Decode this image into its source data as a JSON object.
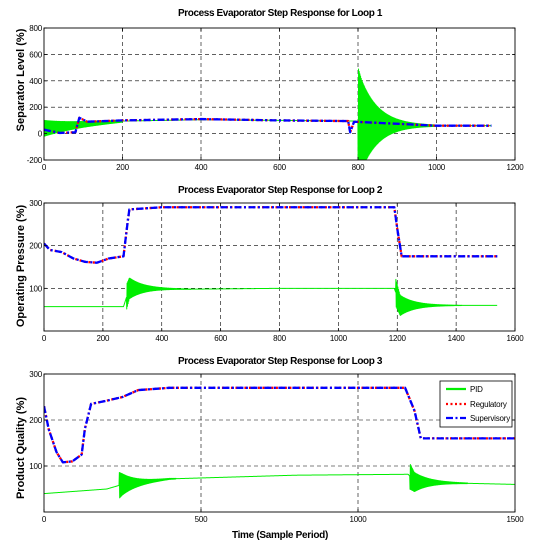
{
  "chart_data": [
    {
      "type": "line",
      "title": "Process Evaporator Step Response for Loop 1",
      "xlabel": "",
      "ylabel": "Separator Level (%)",
      "xlim": [
        0,
        1200
      ],
      "ylim": [
        -200,
        800
      ],
      "xticks": [
        0,
        200,
        400,
        600,
        800,
        1000,
        1200
      ],
      "yticks": [
        -200,
        0,
        200,
        400,
        600,
        800
      ],
      "grid": true,
      "series": [
        {
          "name": "PID",
          "color": "#00ee00",
          "style": "solid",
          "oscillations": [
            {
              "start": 0,
              "end": 200,
              "amplitude": 60,
              "decay": 0.01
            },
            {
              "start": 800,
              "end": 1000,
              "amplitude": 420,
              "decay": 0.022
            }
          ],
          "points": [
            [
              0,
              40
            ],
            [
              100,
              70
            ],
            [
              200,
              95
            ],
            [
              400,
              105
            ],
            [
              600,
              100
            ],
            [
              795,
              95
            ],
            [
              810,
              65
            ],
            [
              1000,
              60
            ],
            [
              1140,
              60
            ]
          ]
        },
        {
          "name": "Regulatory",
          "color": "#ff0000",
          "style": "dotted",
          "points": [
            [
              0,
              30
            ],
            [
              40,
              5
            ],
            [
              80,
              10
            ],
            [
              90,
              120
            ],
            [
              110,
              90
            ],
            [
              200,
              100
            ],
            [
              400,
              110
            ],
            [
              600,
              100
            ],
            [
              775,
              95
            ],
            [
              780,
              10
            ],
            [
              790,
              90
            ],
            [
              1000,
              60
            ],
            [
              1140,
              60
            ]
          ]
        },
        {
          "name": "Supervisory",
          "color": "#0000ff",
          "style": "dashdot",
          "points": [
            [
              0,
              30
            ],
            [
              40,
              5
            ],
            [
              80,
              10
            ],
            [
              90,
              120
            ],
            [
              110,
              90
            ],
            [
              200,
              100
            ],
            [
              400,
              110
            ],
            [
              600,
              100
            ],
            [
              775,
              95
            ],
            [
              780,
              10
            ],
            [
              790,
              90
            ],
            [
              1000,
              60
            ],
            [
              1140,
              60
            ]
          ]
        }
      ]
    },
    {
      "type": "line",
      "title": "Process Evaporator Step Response for Loop 2",
      "xlabel": "",
      "ylabel": "Operating Pressure (%)",
      "xlim": [
        0,
        1600
      ],
      "ylim": [
        0,
        300
      ],
      "xticks": [
        0,
        200,
        400,
        600,
        800,
        1000,
        1200,
        1400,
        1600
      ],
      "yticks": [
        100,
        200,
        300
      ],
      "grid": true,
      "series": [
        {
          "name": "PID",
          "color": "#00ee00",
          "style": "solid",
          "oscillations": [
            {
              "start": 280,
              "end": 500,
              "amplitude": 30,
              "decay": 0.02
            },
            {
              "start": 1195,
              "end": 1420,
              "amplitude": 32,
              "decay": 0.02
            }
          ],
          "points": [
            [
              0,
              57
            ],
            [
              270,
              57
            ],
            [
              290,
              100
            ],
            [
              500,
              98
            ],
            [
              800,
              100
            ],
            [
              1190,
              100
            ],
            [
              1210,
              60
            ],
            [
              1400,
              60
            ],
            [
              1540,
              60
            ]
          ]
        },
        {
          "name": "Regulatory",
          "color": "#ff0000",
          "style": "dotted",
          "points": [
            [
              0,
              205
            ],
            [
              20,
              190
            ],
            [
              60,
              185
            ],
            [
              100,
              170
            ],
            [
              140,
              162
            ],
            [
              180,
              160
            ],
            [
              220,
              170
            ],
            [
              270,
              175
            ],
            [
              285,
              260
            ],
            [
              290,
              285
            ],
            [
              400,
              290
            ],
            [
              800,
              290
            ],
            [
              1190,
              290
            ],
            [
              1200,
              240
            ],
            [
              1215,
              175
            ],
            [
              1400,
              175
            ],
            [
              1540,
              175
            ]
          ]
        },
        {
          "name": "Supervisory",
          "color": "#0000ff",
          "style": "dashdot",
          "points": [
            [
              0,
              205
            ],
            [
              20,
              190
            ],
            [
              60,
              185
            ],
            [
              100,
              170
            ],
            [
              140,
              162
            ],
            [
              180,
              160
            ],
            [
              220,
              170
            ],
            [
              270,
              175
            ],
            [
              285,
              260
            ],
            [
              290,
              285
            ],
            [
              400,
              290
            ],
            [
              800,
              290
            ],
            [
              1190,
              290
            ],
            [
              1200,
              240
            ],
            [
              1215,
              175
            ],
            [
              1400,
              175
            ],
            [
              1540,
              175
            ]
          ]
        }
      ]
    },
    {
      "type": "line",
      "title": "Process Evaporator Step Response for Loop 3",
      "xlabel": "Time (Sample Period)",
      "ylabel": "Product Quality (%)",
      "xlim": [
        0,
        1500
      ],
      "ylim": [
        0,
        300
      ],
      "xticks": [
        0,
        500,
        1000,
        1500
      ],
      "yticks": [
        100,
        200,
        300
      ],
      "grid": true,
      "legend": {
        "position": "right",
        "entries": [
          "PID",
          "Regulatory",
          "Supervisory"
        ]
      },
      "series": [
        {
          "name": "PID",
          "color": "#00ee00",
          "style": "solid",
          "oscillations": [
            {
              "start": 240,
              "end": 420,
              "amplitude": 28,
              "decay": 0.02
            },
            {
              "start": 1165,
              "end": 1350,
              "amplitude": 28,
              "decay": 0.02
            }
          ],
          "points": [
            [
              0,
              40
            ],
            [
              200,
              50
            ],
            [
              250,
              60
            ],
            [
              400,
              72
            ],
            [
              800,
              80
            ],
            [
              1160,
              82
            ],
            [
              1180,
              65
            ],
            [
              1500,
              60
            ]
          ]
        },
        {
          "name": "Regulatory",
          "color": "#ff0000",
          "style": "dotted",
          "points": [
            [
              0,
              230
            ],
            [
              15,
              180
            ],
            [
              40,
              130
            ],
            [
              60,
              108
            ],
            [
              90,
              110
            ],
            [
              120,
              125
            ],
            [
              130,
              180
            ],
            [
              150,
              235
            ],
            [
              200,
              242
            ],
            [
              250,
              250
            ],
            [
              300,
              265
            ],
            [
              400,
              270
            ],
            [
              800,
              270
            ],
            [
              1150,
              270
            ],
            [
              1180,
              220
            ],
            [
              1200,
              160
            ],
            [
              1500,
              160
            ]
          ]
        },
        {
          "name": "Supervisory",
          "color": "#0000ff",
          "style": "dashdot",
          "points": [
            [
              0,
              230
            ],
            [
              15,
              180
            ],
            [
              40,
              130
            ],
            [
              60,
              108
            ],
            [
              90,
              110
            ],
            [
              120,
              125
            ],
            [
              130,
              180
            ],
            [
              150,
              235
            ],
            [
              200,
              242
            ],
            [
              250,
              250
            ],
            [
              300,
              265
            ],
            [
              400,
              270
            ],
            [
              800,
              270
            ],
            [
              1150,
              270
            ],
            [
              1180,
              220
            ],
            [
              1200,
              160
            ],
            [
              1500,
              160
            ]
          ]
        }
      ]
    }
  ]
}
